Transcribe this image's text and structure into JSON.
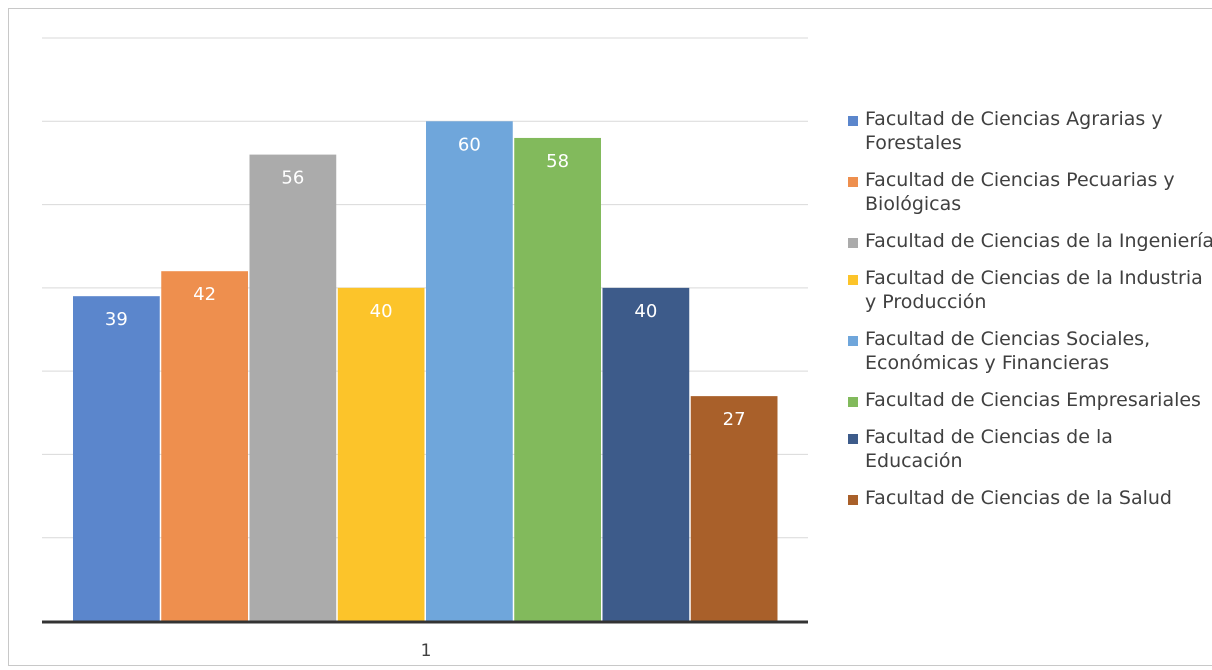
{
  "chart_data": {
    "type": "bar",
    "categories": [
      "1"
    ],
    "ylim": [
      0,
      70
    ],
    "grid": true,
    "legend_position": "right",
    "title": "",
    "xlabel": "",
    "ylabel": "",
    "series": [
      {
        "name": "Facultad de Ciencias Agrarias y Forestales",
        "values": [
          39
        ],
        "color": "#5B86CC"
      },
      {
        "name": "Facultad de Ciencias Pecuarias y Biológicas",
        "values": [
          42
        ],
        "color": "#EE8F4E"
      },
      {
        "name": "Facultad de Ciencias de la Ingeniería",
        "values": [
          56
        ],
        "color": "#ABABAB"
      },
      {
        "name": "Facultad de Ciencias de la Industria y Producción",
        "values": [
          40
        ],
        "color": "#FCC42A"
      },
      {
        "name": "Facultad de Ciencias Sociales, Económicas y Financieras",
        "values": [
          60
        ],
        "color": "#6FA6DB"
      },
      {
        "name": "Facultad de Ciencias Empresariales",
        "values": [
          58
        ],
        "color": "#82BA5C"
      },
      {
        "name": "Facultad de Ciencias de la Educación",
        "values": [
          40
        ],
        "color": "#3D5B8A"
      },
      {
        "name": "Facultad de Ciencias de la Salud",
        "values": [
          27
        ],
        "color": "#A9602A"
      }
    ]
  }
}
